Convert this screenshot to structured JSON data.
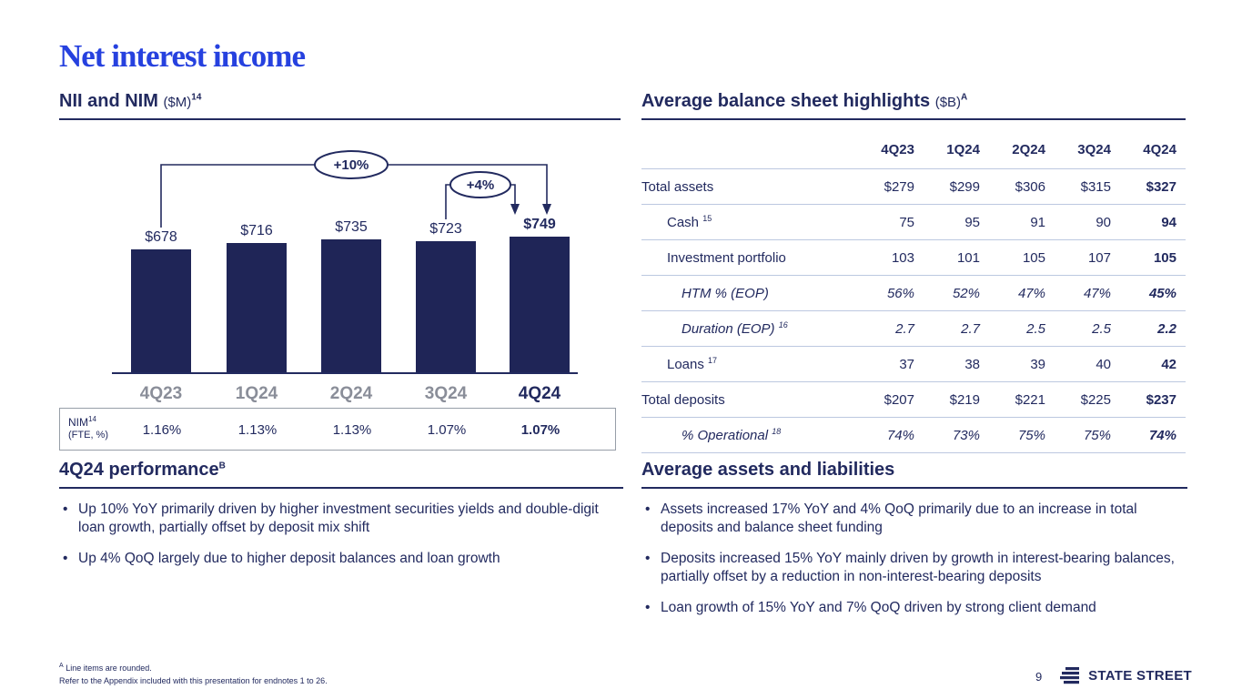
{
  "slide": {
    "title": "Net interest income",
    "page_number": "9",
    "logo_text": "STATE STREET",
    "accent_blue": "#2641df",
    "navy": "#222a5f",
    "bar_color": "#1f2557"
  },
  "nii_section": {
    "heading": "NII and NIM",
    "unit": "($M)",
    "sup": "14"
  },
  "chart_data": {
    "type": "bar",
    "title": "NII and NIM ($M)",
    "categories": [
      "4Q23",
      "1Q24",
      "2Q24",
      "3Q24",
      "4Q24"
    ],
    "values": [
      678,
      716,
      735,
      723,
      749
    ],
    "value_labels": [
      "$678",
      "$716",
      "$735",
      "$723",
      "$749"
    ],
    "ylim": [
      0,
      800
    ],
    "grid": false,
    "annotations": [
      {
        "label": "+10%",
        "from": "4Q23",
        "to": "4Q24"
      },
      {
        "label": "+4%",
        "from": "3Q24",
        "to": "4Q24"
      }
    ],
    "nim_row": {
      "label": "NIM",
      "sup": "14",
      "sublabel": "(FTE, %)",
      "values": [
        "1.16%",
        "1.13%",
        "1.13%",
        "1.07%",
        "1.07%"
      ]
    }
  },
  "balance_sheet": {
    "heading": "Average balance sheet highlights",
    "unit": "($B)",
    "sup": "A",
    "columns": [
      "4Q23",
      "1Q24",
      "2Q24",
      "3Q24",
      "4Q24"
    ],
    "rows": [
      {
        "label": "Total assets",
        "sup": "",
        "indent": 0,
        "italic": false,
        "values": [
          "$279",
          "$299",
          "$306",
          "$315",
          "$327"
        ]
      },
      {
        "label": "Cash",
        "sup": "15",
        "indent": 1,
        "italic": false,
        "values": [
          "75",
          "95",
          "91",
          "90",
          "94"
        ]
      },
      {
        "label": "Investment portfolio",
        "sup": "",
        "indent": 1,
        "italic": false,
        "values": [
          "103",
          "101",
          "105",
          "107",
          "105"
        ]
      },
      {
        "label": "HTM % (EOP)",
        "sup": "",
        "indent": 2,
        "italic": true,
        "values": [
          "56%",
          "52%",
          "47%",
          "47%",
          "45%"
        ]
      },
      {
        "label": "Duration (EOP)",
        "sup": "16",
        "indent": 2,
        "italic": true,
        "values": [
          "2.7",
          "2.7",
          "2.5",
          "2.5",
          "2.2"
        ]
      },
      {
        "label": "Loans",
        "sup": "17",
        "indent": 1,
        "italic": false,
        "values": [
          "37",
          "38",
          "39",
          "40",
          "42"
        ]
      },
      {
        "label": "Total deposits",
        "sup": "",
        "indent": 0,
        "italic": false,
        "values": [
          "$207",
          "$219",
          "$221",
          "$225",
          "$237"
        ]
      },
      {
        "label": "% Operational",
        "sup": "18",
        "indent": 2,
        "italic": true,
        "values": [
          "74%",
          "73%",
          "75%",
          "75%",
          "74%"
        ]
      }
    ]
  },
  "performance_section": {
    "heading": "4Q24 performance",
    "sup": "B",
    "bullets": [
      "Up 10% YoY primarily driven by higher investment securities yields and double-digit loan growth, partially offset by deposit mix shift",
      "Up 4% QoQ largely due to higher deposit balances and loan growth"
    ]
  },
  "assets_section": {
    "heading": "Average assets and liabilities",
    "bullets": [
      "Assets increased 17% YoY and 4% QoQ primarily due to an increase in total deposits and balance sheet funding",
      "Deposits increased 15% YoY mainly driven by growth in interest-bearing balances, partially offset by a reduction in non-interest-bearing deposits",
      "Loan growth of 15% YoY and 7% QoQ driven by strong client demand"
    ]
  },
  "footnotes": {
    "sup": "A",
    "line1": "Line items are rounded.",
    "line2": "Refer to the Appendix included with this presentation for endnotes 1 to 26."
  }
}
